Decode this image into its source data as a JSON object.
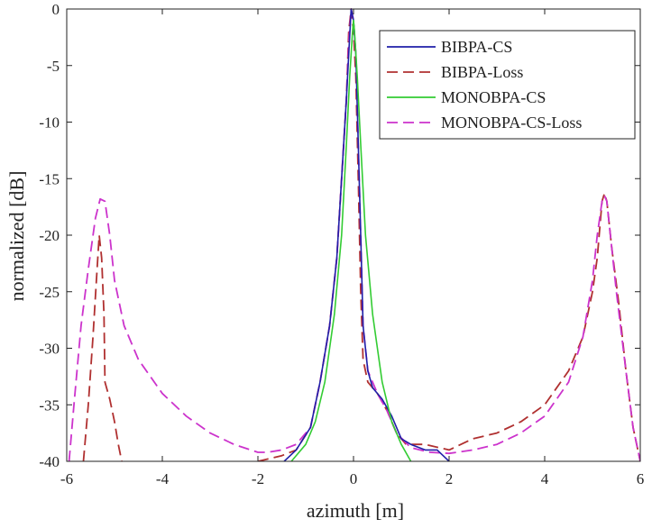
{
  "chart_data": {
    "type": "line",
    "title": "",
    "xlabel": "azimuth [m]",
    "ylabel": "normalized [dB]",
    "xlim": [
      -6,
      6
    ],
    "ylim": [
      -40,
      0
    ],
    "xticks": [
      -6,
      -4,
      -2,
      0,
      2,
      4,
      6
    ],
    "yticks": [
      0,
      -5,
      -10,
      -15,
      -20,
      -25,
      -30,
      -35,
      -40
    ],
    "xtick_labels": [
      "-6",
      "-4",
      "-2",
      "0",
      "2",
      "4",
      "6"
    ],
    "ytick_labels": [
      "0",
      "-5",
      "-10",
      "-15",
      "-20",
      "-25",
      "-30",
      "-35",
      "-40"
    ],
    "grid": false,
    "legend_position": "top-right",
    "series": [
      {
        "name": "BIBPA-CS",
        "color": "#1f1fa8",
        "dash": "solid",
        "points": [
          [
            -1.45,
            -40
          ],
          [
            -1.2,
            -39
          ],
          [
            -0.9,
            -37
          ],
          [
            -0.7,
            -33
          ],
          [
            -0.5,
            -28
          ],
          [
            -0.35,
            -22
          ],
          [
            -0.25,
            -15
          ],
          [
            -0.15,
            -8
          ],
          [
            -0.1,
            -4
          ],
          [
            -0.05,
            0
          ],
          [
            0,
            -1
          ],
          [
            0.05,
            -4
          ],
          [
            0.1,
            -12
          ],
          [
            0.15,
            -20
          ],
          [
            0.2,
            -28
          ],
          [
            0.3,
            -32
          ],
          [
            0.4,
            -33.5
          ],
          [
            0.6,
            -34.5
          ],
          [
            0.8,
            -36
          ],
          [
            1.0,
            -38
          ],
          [
            1.2,
            -38.5
          ],
          [
            1.5,
            -39
          ],
          [
            1.75,
            -39
          ],
          [
            2.0,
            -40
          ]
        ]
      },
      {
        "name": "BIBPA-Loss",
        "color": "#b03030",
        "dash": "long",
        "points": [
          [
            -5.65,
            -40
          ],
          [
            -5.55,
            -35
          ],
          [
            -5.45,
            -29
          ],
          [
            -5.38,
            -24
          ],
          [
            -5.32,
            -20
          ],
          [
            -5.27,
            -22
          ],
          [
            -5.22,
            -27
          ],
          [
            -5.2,
            -33
          ],
          [
            -5.1,
            -34.5
          ],
          [
            -5.0,
            -36.5
          ],
          [
            -4.92,
            -38.5
          ],
          [
            -4.85,
            -40
          ],
          null,
          [
            -2.0,
            -40
          ],
          [
            -1.5,
            -39.5
          ],
          [
            -1.2,
            -39
          ],
          [
            -0.9,
            -37
          ],
          [
            -0.7,
            -33
          ],
          [
            -0.5,
            -28
          ],
          [
            -0.35,
            -22
          ],
          [
            -0.25,
            -15
          ],
          [
            -0.15,
            -8
          ],
          [
            -0.1,
            -2
          ],
          [
            -0.05,
            0
          ],
          [
            0,
            -2
          ],
          [
            0.05,
            -6
          ],
          [
            0.1,
            -15
          ],
          [
            0.15,
            -25
          ],
          [
            0.2,
            -31
          ],
          [
            0.3,
            -33
          ],
          [
            0.5,
            -34
          ],
          [
            0.7,
            -35.5
          ],
          [
            0.9,
            -37.5
          ],
          [
            1.1,
            -38.5
          ],
          [
            1.5,
            -38.5
          ],
          [
            2.0,
            -39
          ],
          [
            2.5,
            -38
          ],
          [
            3.0,
            -37.5
          ],
          [
            3.5,
            -36.5
          ],
          [
            4.0,
            -35
          ],
          [
            4.5,
            -32
          ],
          [
            4.8,
            -29
          ],
          [
            5.0,
            -25
          ],
          [
            5.1,
            -22
          ],
          [
            5.2,
            -17
          ],
          [
            5.25,
            -16.3
          ],
          [
            5.3,
            -17
          ],
          [
            5.4,
            -21
          ],
          [
            5.55,
            -26
          ],
          [
            5.7,
            -32
          ],
          [
            5.85,
            -37
          ],
          [
            6.0,
            -40
          ]
        ]
      },
      {
        "name": "MONOBPA-CS",
        "color": "#33cc33",
        "dash": "solid",
        "points": [
          [
            -1.3,
            -40
          ],
          [
            -1.0,
            -38.5
          ],
          [
            -0.8,
            -36.5
          ],
          [
            -0.6,
            -33
          ],
          [
            -0.4,
            -27
          ],
          [
            -0.25,
            -20
          ],
          [
            -0.15,
            -12
          ],
          [
            -0.08,
            -6
          ],
          [
            -0.02,
            -2
          ],
          [
            0,
            -1
          ],
          [
            0.02,
            -2
          ],
          [
            0.08,
            -6
          ],
          [
            0.15,
            -12
          ],
          [
            0.25,
            -20
          ],
          [
            0.4,
            -27
          ],
          [
            0.6,
            -33
          ],
          [
            0.8,
            -36.5
          ],
          [
            1.0,
            -38.5
          ],
          [
            1.2,
            -40
          ]
        ]
      },
      {
        "name": "MONOBPA-CS-Loss",
        "color": "#cc33cc",
        "dash": "long",
        "points": [
          [
            -5.95,
            -40
          ],
          [
            -5.85,
            -35
          ],
          [
            -5.7,
            -28
          ],
          [
            -5.55,
            -23
          ],
          [
            -5.4,
            -18.5
          ],
          [
            -5.3,
            -16.8
          ],
          [
            -5.2,
            -17
          ],
          [
            -5.1,
            -20
          ],
          [
            -5.0,
            -24
          ],
          [
            -4.8,
            -28
          ],
          [
            -4.5,
            -31
          ],
          [
            -4.0,
            -34
          ],
          [
            -3.5,
            -36
          ],
          [
            -3.0,
            -37.5
          ],
          [
            -2.5,
            -38.5
          ],
          [
            -2.0,
            -39.2
          ],
          [
            -1.8,
            -39.2
          ],
          [
            -1.5,
            -39
          ],
          [
            -1.2,
            -38.5
          ],
          [
            -0.9,
            -37
          ],
          [
            -0.7,
            -33
          ],
          [
            -0.5,
            -28
          ],
          [
            -0.35,
            -22
          ],
          [
            -0.25,
            -15
          ],
          [
            -0.15,
            -8
          ],
          [
            -0.1,
            -3
          ],
          [
            -0.05,
            0
          ],
          [
            0,
            -1
          ],
          [
            0.05,
            -4
          ],
          [
            0.1,
            -12
          ],
          [
            0.15,
            -20
          ],
          [
            0.2,
            -28
          ],
          [
            0.3,
            -32
          ],
          [
            0.5,
            -34
          ],
          [
            0.7,
            -35.5
          ],
          [
            0.9,
            -37.5
          ],
          [
            1.2,
            -38.8
          ],
          [
            1.6,
            -39.2
          ],
          [
            2.0,
            -39.3
          ],
          [
            2.5,
            -39
          ],
          [
            3.0,
            -38.5
          ],
          [
            3.5,
            -37.5
          ],
          [
            4.0,
            -36
          ],
          [
            4.5,
            -33
          ],
          [
            4.8,
            -29
          ],
          [
            5.0,
            -24
          ],
          [
            5.1,
            -20
          ],
          [
            5.2,
            -17
          ],
          [
            5.25,
            -16.5
          ],
          [
            5.3,
            -17
          ],
          [
            5.4,
            -21
          ],
          [
            5.5,
            -25
          ],
          [
            5.7,
            -32
          ],
          [
            5.85,
            -37
          ],
          [
            6.0,
            -40
          ]
        ]
      }
    ]
  }
}
